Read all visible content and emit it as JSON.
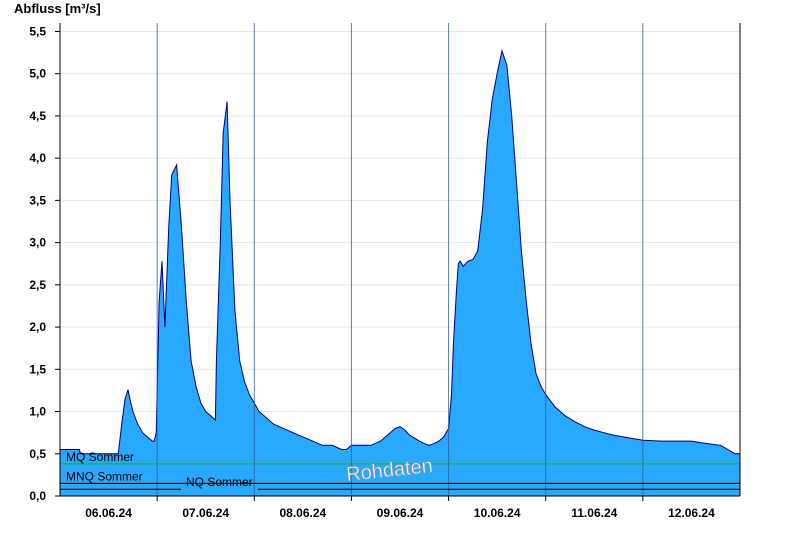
{
  "chart_data": {
    "type": "area",
    "ylabel": "Abfluss [m³/s]",
    "ylim": [
      0,
      5.6
    ],
    "yticks": [
      0.0,
      0.5,
      1.0,
      1.5,
      2.0,
      2.5,
      3.0,
      3.5,
      4.0,
      4.5,
      5.0,
      5.5
    ],
    "ytick_labels": [
      "0,0",
      "0,5",
      "1,0",
      "1,5",
      "2,0",
      "2,5",
      "3,0",
      "3,5",
      "4,0",
      "4,5",
      "5,0",
      "5,5"
    ],
    "x_unit": "days since 05.06.24 18:00",
    "xlim": [
      0,
      7.0
    ],
    "xtick_labels": [
      "06.06.24",
      "07.06.24",
      "08.06.24",
      "09.06.24",
      "10.06.24",
      "11.06.24",
      "12.06.24"
    ],
    "xtick_label_positions": [
      0.5,
      1.5,
      2.5,
      3.5,
      4.5,
      5.5,
      6.5
    ],
    "day_boundaries": [
      1.0,
      2.0,
      3.0,
      4.0,
      5.0,
      6.0
    ],
    "watermark": "Rohdaten",
    "colors": {
      "fill": "#29a8ff",
      "outline": "#00007a",
      "mq": "#22aa22",
      "ref": "#000000",
      "grid": "#e6e6e6"
    },
    "reference_lines": [
      {
        "label": "MQ Sommer",
        "value": 0.38,
        "color": "#22aa22"
      },
      {
        "label": "MNQ Sommer",
        "value": 0.15,
        "color": "#000000"
      },
      {
        "label": "NQ Sommer",
        "value": 0.08,
        "color": "#000000"
      }
    ],
    "series": [
      {
        "x": [
          0,
          0.2,
          0.21,
          0.6,
          0.62,
          0.64,
          0.67,
          0.7,
          0.72,
          0.75,
          0.8,
          0.85,
          0.9,
          0.95,
          0.97,
          0.99,
          1.0,
          1.02,
          1.05,
          1.08,
          1.12,
          1.15,
          1.2,
          1.25,
          1.3,
          1.35,
          1.4,
          1.45,
          1.5,
          1.55,
          1.6,
          1.61,
          1.65,
          1.68,
          1.72,
          1.75,
          1.8,
          1.85,
          1.9,
          1.95,
          2.0,
          2.05,
          2.1,
          2.15,
          2.2,
          2.3,
          2.4,
          2.5,
          2.6,
          2.7,
          2.8,
          2.9,
          2.95,
          3.0,
          3.05,
          3.1,
          3.15,
          3.2,
          3.3,
          3.35,
          3.4,
          3.45,
          3.5,
          3.55,
          3.6,
          3.7,
          3.75,
          3.8,
          3.85,
          3.9,
          3.95,
          4.0,
          4.03,
          4.05,
          4.08,
          4.1,
          4.12,
          4.15,
          4.2,
          4.25,
          4.3,
          4.35,
          4.4,
          4.45,
          4.5,
          4.55,
          4.6,
          4.65,
          4.7,
          4.75,
          4.8,
          4.85,
          4.9,
          4.95,
          5.0,
          5.1,
          5.2,
          5.3,
          5.4,
          5.5,
          5.6,
          5.7,
          5.8,
          5.9,
          6.0,
          6.2,
          6.4,
          6.5,
          6.6,
          6.8,
          6.95,
          7.0
        ],
        "values": [
          0.55,
          0.55,
          0.5,
          0.5,
          0.7,
          0.9,
          1.15,
          1.26,
          1.15,
          1.0,
          0.85,
          0.75,
          0.7,
          0.65,
          0.65,
          0.75,
          1.2,
          2.3,
          2.78,
          2.0,
          3.2,
          3.8,
          3.92,
          3.2,
          2.3,
          1.6,
          1.3,
          1.1,
          1.0,
          0.95,
          0.9,
          1.6,
          3.0,
          4.3,
          4.67,
          3.5,
          2.2,
          1.6,
          1.35,
          1.2,
          1.1,
          1.0,
          0.95,
          0.9,
          0.85,
          0.8,
          0.75,
          0.7,
          0.65,
          0.6,
          0.6,
          0.55,
          0.55,
          0.6,
          0.6,
          0.6,
          0.6,
          0.6,
          0.65,
          0.7,
          0.75,
          0.8,
          0.82,
          0.78,
          0.72,
          0.65,
          0.62,
          0.6,
          0.62,
          0.65,
          0.7,
          0.8,
          1.2,
          1.8,
          2.4,
          2.75,
          2.78,
          2.72,
          2.78,
          2.8,
          2.9,
          3.4,
          4.2,
          4.7,
          5.0,
          5.27,
          5.1,
          4.5,
          3.7,
          2.9,
          2.3,
          1.8,
          1.45,
          1.3,
          1.2,
          1.05,
          0.95,
          0.88,
          0.82,
          0.78,
          0.75,
          0.72,
          0.7,
          0.68,
          0.66,
          0.65,
          0.65,
          0.65,
          0.63,
          0.6,
          0.5,
          0.5
        ]
      }
    ]
  }
}
